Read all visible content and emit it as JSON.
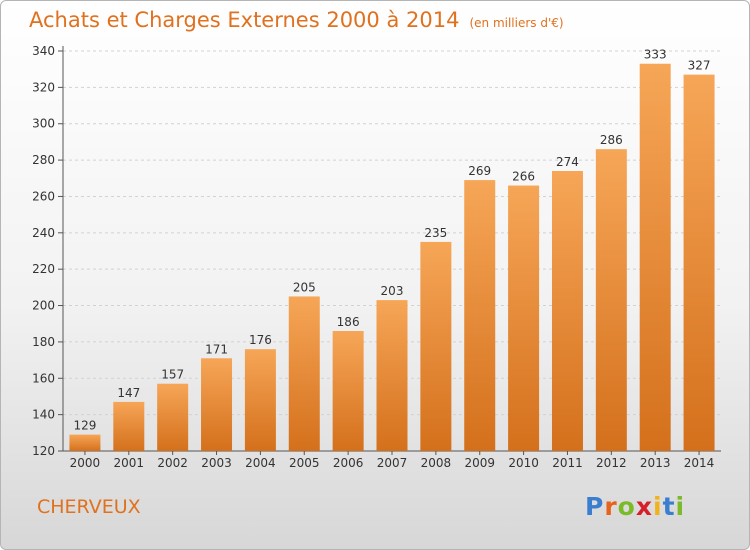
{
  "title": "Achats et Charges Externes 2000 à 2014",
  "subtitle": "(en milliers d'€)",
  "commune": "CHERVEUX",
  "logo": {
    "letters": [
      "P",
      "r",
      "o",
      "x",
      "i",
      "t",
      "i"
    ],
    "colors": [
      "#3a7fcf",
      "#e8631a",
      "#7cba2a",
      "#d5202a",
      "#f2b21c",
      "#3a7fcf",
      "#7cba2a"
    ]
  },
  "colors": {
    "accent": "#e0711e",
    "bar_light": "#f6a657",
    "bar_dark": "#d8741e"
  },
  "chart_data": {
    "type": "bar",
    "title": "Achats et Charges Externes 2000 à 2014",
    "subtitle": "(en milliers d'€)",
    "categories": [
      "2000",
      "2001",
      "2002",
      "2003",
      "2004",
      "2005",
      "2006",
      "2007",
      "2008",
      "2009",
      "2010",
      "2011",
      "2012",
      "2013",
      "2014"
    ],
    "values": [
      129,
      147,
      157,
      171,
      176,
      205,
      186,
      203,
      235,
      269,
      266,
      274,
      286,
      333,
      327
    ],
    "ylim": [
      120,
      340
    ],
    "yticks": [
      120,
      140,
      160,
      180,
      200,
      220,
      240,
      260,
      280,
      300,
      320,
      340
    ],
    "grid": true,
    "xlabel": "",
    "ylabel": ""
  }
}
